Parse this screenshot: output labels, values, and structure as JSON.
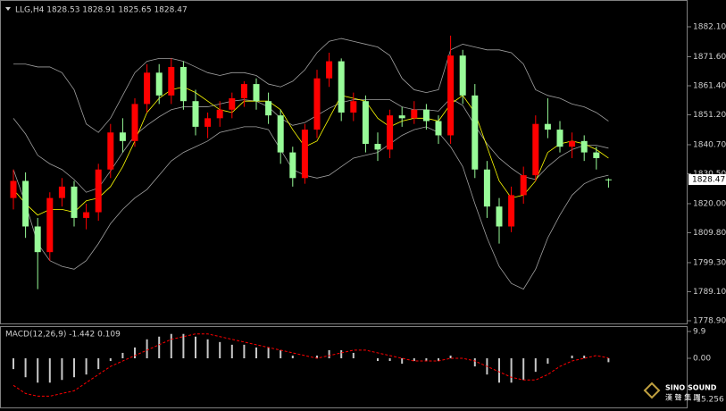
{
  "watermark": [
    "SINO SOUND",
    "漢 聲 集 團"
  ],
  "chart_data": [
    {
      "type": "candlestick",
      "title": "LLG,H4 1828.53 1828.91 1825.65 1828.47",
      "up_color": "#ff0000",
      "down_color": "#98fb98",
      "open": [
        1822,
        1828,
        1812,
        1803,
        1822,
        1826,
        1815,
        1817,
        1832,
        1845,
        1842,
        1855,
        1866,
        1858,
        1868,
        1856,
        1847,
        1850,
        1853,
        1857,
        1862,
        1856,
        1851,
        1838,
        1829,
        1846,
        1864,
        1870,
        1852,
        1856,
        1841,
        1839,
        1851,
        1850,
        1853,
        1849,
        1844,
        1872,
        1858,
        1832,
        1819,
        1812,
        1823,
        1830,
        1848,
        1846,
        1840,
        1842,
        1838,
        1828.53
      ],
      "high": [
        1832,
        1831,
        1815,
        1824,
        1829,
        1828,
        1820,
        1834,
        1848,
        1850,
        1857,
        1869,
        1869,
        1871,
        1870,
        1860,
        1852,
        1856,
        1859,
        1863,
        1864,
        1859,
        1853,
        1840,
        1848,
        1867,
        1873,
        1871,
        1859,
        1858,
        1845,
        1853,
        1854,
        1856,
        1855,
        1851,
        1879,
        1874,
        1862,
        1835,
        1822,
        1826,
        1833,
        1851,
        1857,
        1849,
        1845,
        1844,
        1840,
        1828.91
      ],
      "low": [
        1818,
        1808,
        1790,
        1800,
        1819,
        1812,
        1811,
        1814,
        1829,
        1838,
        1840,
        1852,
        1855,
        1855,
        1853,
        1844,
        1843,
        1847,
        1850,
        1854,
        1853,
        1848,
        1834,
        1826,
        1827,
        1843,
        1861,
        1849,
        1849,
        1838,
        1835,
        1836,
        1847,
        1848,
        1846,
        1841,
        1841,
        1855,
        1829,
        1815,
        1806,
        1810,
        1820,
        1828,
        1843,
        1838,
        1836,
        1835,
        1832,
        1825.65
      ],
      "close": [
        1828,
        1812,
        1803,
        1822,
        1826,
        1815,
        1817,
        1832,
        1845,
        1842,
        1855,
        1866,
        1858,
        1868,
        1856,
        1847,
        1850,
        1853,
        1857,
        1862,
        1856,
        1851,
        1838,
        1829,
        1846,
        1864,
        1870,
        1852,
        1856,
        1841,
        1839,
        1851,
        1850,
        1853,
        1849,
        1844,
        1872,
        1858,
        1832,
        1819,
        1812,
        1823,
        1830,
        1848,
        1846,
        1840,
        1842,
        1838,
        1836,
        1828.47
      ],
      "series": [
        {
          "color": "#a0a0a0",
          "values": [
            1869,
            1869,
            1868,
            1868,
            1866,
            1860,
            1848,
            1845,
            1850,
            1858,
            1866,
            1870,
            1871,
            1871,
            1870,
            1868,
            1866,
            1865,
            1866,
            1866,
            1865,
            1862,
            1861,
            1863,
            1867,
            1873,
            1877,
            1878,
            1877,
            1876,
            1875,
            1872,
            1864,
            1860,
            1859,
            1860,
            1874,
            1876,
            1875,
            1874,
            1874,
            1873,
            1869,
            1860,
            1858,
            1857,
            1855,
            1854,
            1852,
            1849
          ]
        },
        {
          "color": "#a0a0a0",
          "values": [
            1850,
            1844.5,
            1837,
            1834,
            1832,
            1828.5,
            1824,
            1825.5,
            1831.5,
            1838,
            1844,
            1847.5,
            1850.5,
            1853,
            1854,
            1854,
            1854,
            1855,
            1856,
            1856.5,
            1856,
            1854,
            1850,
            1847.5,
            1848.5,
            1851,
            1853.5,
            1855.5,
            1856.5,
            1856.5,
            1856.5,
            1856.5,
            1854,
            1853,
            1853,
            1852.5,
            1857,
            1854.5,
            1847.5,
            1841,
            1836,
            1832.5,
            1829.5,
            1828.5,
            1833,
            1836.5,
            1839,
            1840.5,
            1840.5,
            1839.5
          ]
        },
        {
          "color": "#a0a0a0",
          "values": [
            1832,
            1820,
            1806,
            1800,
            1798,
            1797,
            1800,
            1806,
            1813,
            1818,
            1822,
            1825,
            1830,
            1835,
            1838,
            1840,
            1842,
            1845,
            1846,
            1847,
            1847,
            1846,
            1839,
            1832,
            1830,
            1829,
            1830,
            1833,
            1836,
            1837,
            1838,
            1841,
            1844,
            1846,
            1847,
            1845,
            1840,
            1833,
            1820,
            1808,
            1798,
            1792,
            1790,
            1797,
            1808,
            1816,
            1823,
            1827,
            1829,
            1830
          ]
        },
        {
          "color": "#ffff00",
          "values": [
            1825,
            1820,
            1816,
            1818,
            1818,
            1817,
            1821,
            1822,
            1826,
            1833,
            1842,
            1852,
            1857,
            1860,
            1861,
            1859,
            1856,
            1853,
            1852,
            1856,
            1856,
            1856,
            1853,
            1846,
            1840,
            1842,
            1850,
            1858,
            1857,
            1856,
            1850,
            1847,
            1849,
            1850,
            1850,
            1849,
            1855,
            1858,
            1852,
            1840,
            1828,
            1822,
            1823,
            1828,
            1838,
            1841,
            1842,
            1841,
            1839,
            1836
          ]
        }
      ],
      "last_price": 1828.47,
      "ylim": [
        1777.96,
        1889.94
      ],
      "yticks": [
        {
          "value": 1882.1,
          "label": "1882.10"
        },
        {
          "value": 1871.6,
          "label": "1871.60"
        },
        {
          "value": 1861.4,
          "label": "1861.40"
        },
        {
          "value": 1851.2,
          "label": "1851.20"
        },
        {
          "value": 1840.7,
          "label": "1840.70"
        },
        {
          "value": 1830.5,
          "label": "1830.50"
        },
        {
          "value": 1820,
          "label": "1820.00"
        },
        {
          "value": 1809.8,
          "label": "1809.80"
        },
        {
          "value": 1799.3,
          "label": "1799.30"
        },
        {
          "value": 1789.1,
          "label": "1789.10"
        },
        {
          "value": 1778.9,
          "label": "1778.90"
        }
      ]
    },
    {
      "type": "macd",
      "title": "MACD(12,26,9) -1.442 0.109",
      "series": [
        {
          "kind": "histogram",
          "color": "#c8c8c8",
          "values": [
            -4,
            -7,
            -9,
            -9,
            -8,
            -7,
            -6,
            -4,
            -1,
            2,
            4,
            7,
            8,
            9,
            9,
            8,
            7,
            6,
            5,
            5,
            4,
            4,
            3,
            1,
            0,
            1,
            3,
            3,
            2,
            0,
            -1,
            -1,
            -2,
            -1,
            -1,
            -1,
            1,
            0,
            -3,
            -6,
            -9,
            -9,
            -8,
            -5,
            -2,
            0,
            1,
            1,
            0,
            -1.442
          ]
        },
        {
          "kind": "signal",
          "color": "#ff0000",
          "values": [
            -10,
            -13,
            -14,
            -14,
            -13,
            -12,
            -9,
            -6,
            -3,
            -1,
            1,
            3,
            5,
            7,
            8,
            9,
            9,
            8,
            7,
            6,
            5,
            4,
            3,
            2,
            1,
            0,
            1,
            2,
            3,
            3,
            2,
            1,
            0,
            -1,
            -1,
            -1,
            0,
            0,
            -1,
            -3,
            -5,
            -7,
            -8,
            -8,
            -6,
            -3,
            -1,
            0,
            1,
            0.109
          ]
        }
      ],
      "ylim": [
        -18.15,
        11.55
      ],
      "yticks": [
        9.9,
        {
          "value": 0,
          "label": "0.00"
        },
        -15.256
      ]
    }
  ]
}
